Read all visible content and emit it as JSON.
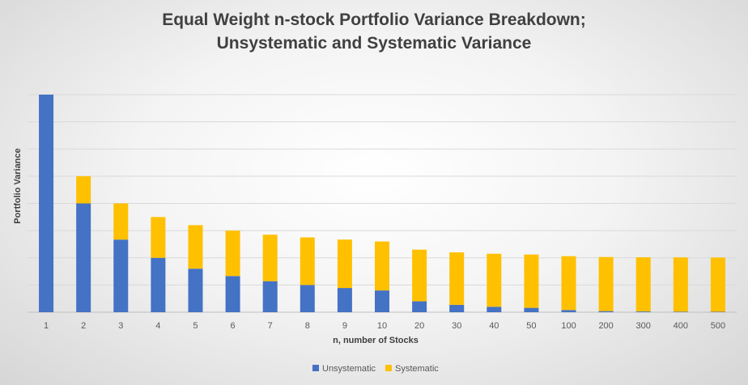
{
  "chart_data": {
    "type": "bar",
    "stacked": true,
    "title_line1": "Equal Weight n-stock Portfolio Variance Breakdown;",
    "title_line2": "Unsystematic and Systematic Variance",
    "xlabel": "n, number of Stocks",
    "ylabel": "Portfolio Variance",
    "ylim": [
      0,
      8
    ],
    "grid": true,
    "legend_position": "bottom",
    "categories": [
      "1",
      "2",
      "3",
      "4",
      "5",
      "6",
      "7",
      "8",
      "9",
      "10",
      "20",
      "30",
      "40",
      "50",
      "100",
      "200",
      "300",
      "400",
      "500"
    ],
    "series": [
      {
        "name": "Unsystematic",
        "color": "#4472C4",
        "values": [
          8,
          4,
          2.67,
          2,
          1.6,
          1.33,
          1.14,
          1,
          0.89,
          0.8,
          0.4,
          0.27,
          0.2,
          0.16,
          0.08,
          0.04,
          0.027,
          0.02,
          0.016
        ]
      },
      {
        "name": "Systematic",
        "color": "#FFC000",
        "values": [
          0,
          1,
          1.33,
          1.5,
          1.6,
          1.67,
          1.71,
          1.75,
          1.78,
          1.8,
          1.9,
          1.93,
          1.95,
          1.96,
          1.98,
          1.99,
          1.993,
          1.995,
          1.996
        ]
      }
    ]
  }
}
